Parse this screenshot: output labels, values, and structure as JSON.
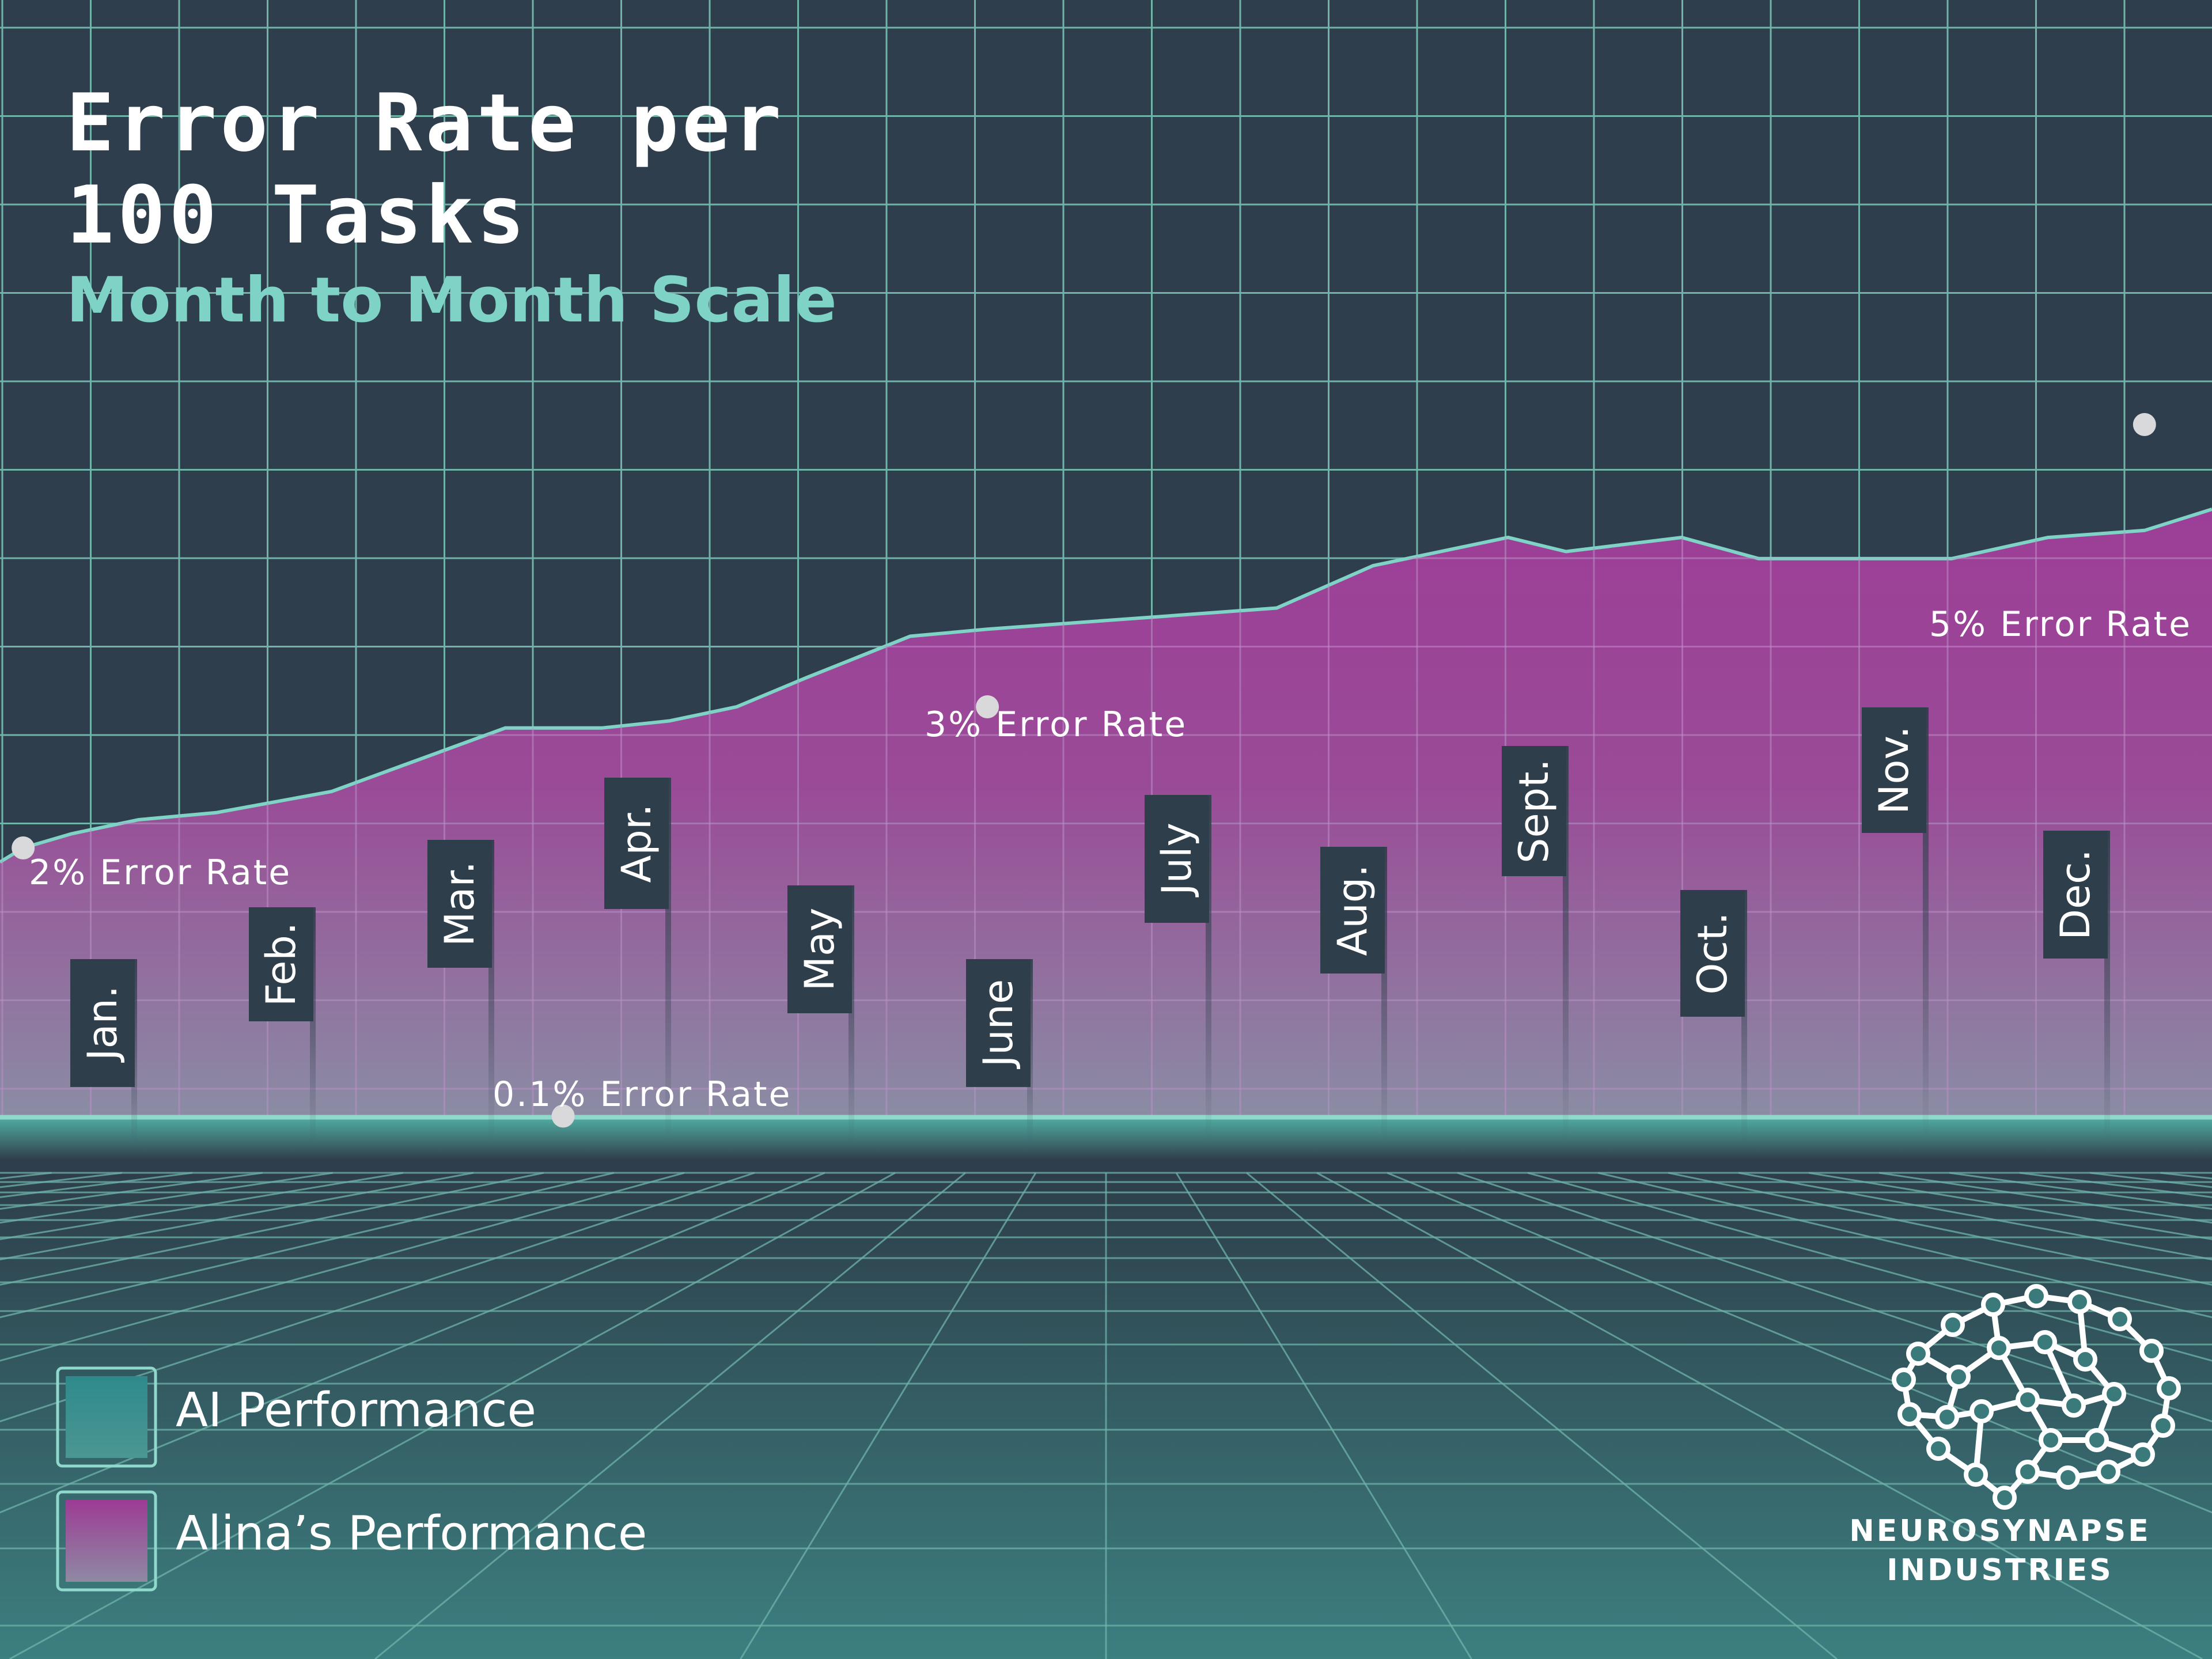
{
  "title_line1": "Error Rate per",
  "title_line2": "100 Tasks",
  "subtitle": "Month to Month Scale",
  "legend": [
    {
      "label": "AI Performance",
      "color": "#3a8587"
    },
    {
      "label": "Alina’s Performance",
      "color": "#9e3e96"
    }
  ],
  "brand": {
    "line1": "NEUROSYNAPSE",
    "line2": "INDUSTRIES"
  },
  "colors": {
    "background": "#2e3e4c",
    "grid": "#6fb3a9",
    "area_top": "#9c3e97",
    "area_bottom": "#8a8fa5",
    "accent": "#7fd3c6",
    "floor": "#3b7a7b"
  },
  "chart_data": {
    "type": "area",
    "title": "Error Rate per 100 Tasks",
    "subtitle": "Month to Month Scale",
    "categories": [
      "Jan.",
      "Feb.",
      "Mar.",
      "Apr.",
      "May",
      "June",
      "July",
      "Aug.",
      "Sept.",
      "Oct.",
      "Nov.",
      "Dec."
    ],
    "series": [
      {
        "name": "Alina’s Performance",
        "color": "#9e3e96",
        "x": [
          -0.12,
          0.0,
          0.25,
          0.6,
          1.0,
          1.6,
          2.0,
          2.5,
          3.0,
          3.35,
          3.7,
          4.05,
          4.6,
          5.0,
          5.5,
          6.0,
          6.5,
          7.0,
          7.7,
          8.0,
          8.6,
          9.0,
          9.5,
          10.0,
          10.5,
          11.0,
          11.35
        ],
        "values": [
          1.9,
          2.0,
          2.1,
          2.2,
          2.25,
          2.4,
          2.6,
          2.85,
          2.85,
          2.9,
          3.0,
          3.2,
          3.5,
          3.55,
          3.6,
          3.65,
          3.7,
          4.0,
          4.2,
          4.1,
          4.2,
          4.05,
          4.05,
          4.05,
          4.2,
          4.25,
          4.4
        ]
      },
      {
        "name": "AI Performance",
        "color": "#3a8587",
        "x": [
          -0.12,
          11.35
        ],
        "values": [
          0.1,
          0.1
        ]
      }
    ],
    "annotations": [
      {
        "text": "2% Error Rate",
        "x": 0.0,
        "y": 2.0
      },
      {
        "text": "0.1% Error Rate",
        "x": 2.8,
        "y": 0.1
      },
      {
        "text": "3% Error Rate",
        "x": 5.0,
        "y": 3.0
      },
      {
        "text": "5% Error Rate",
        "x": 11.0,
        "y": 5.0
      }
    ],
    "xlim": [
      -0.12,
      11.35
    ],
    "ylim": [
      0,
      5
    ],
    "grid": true
  }
}
